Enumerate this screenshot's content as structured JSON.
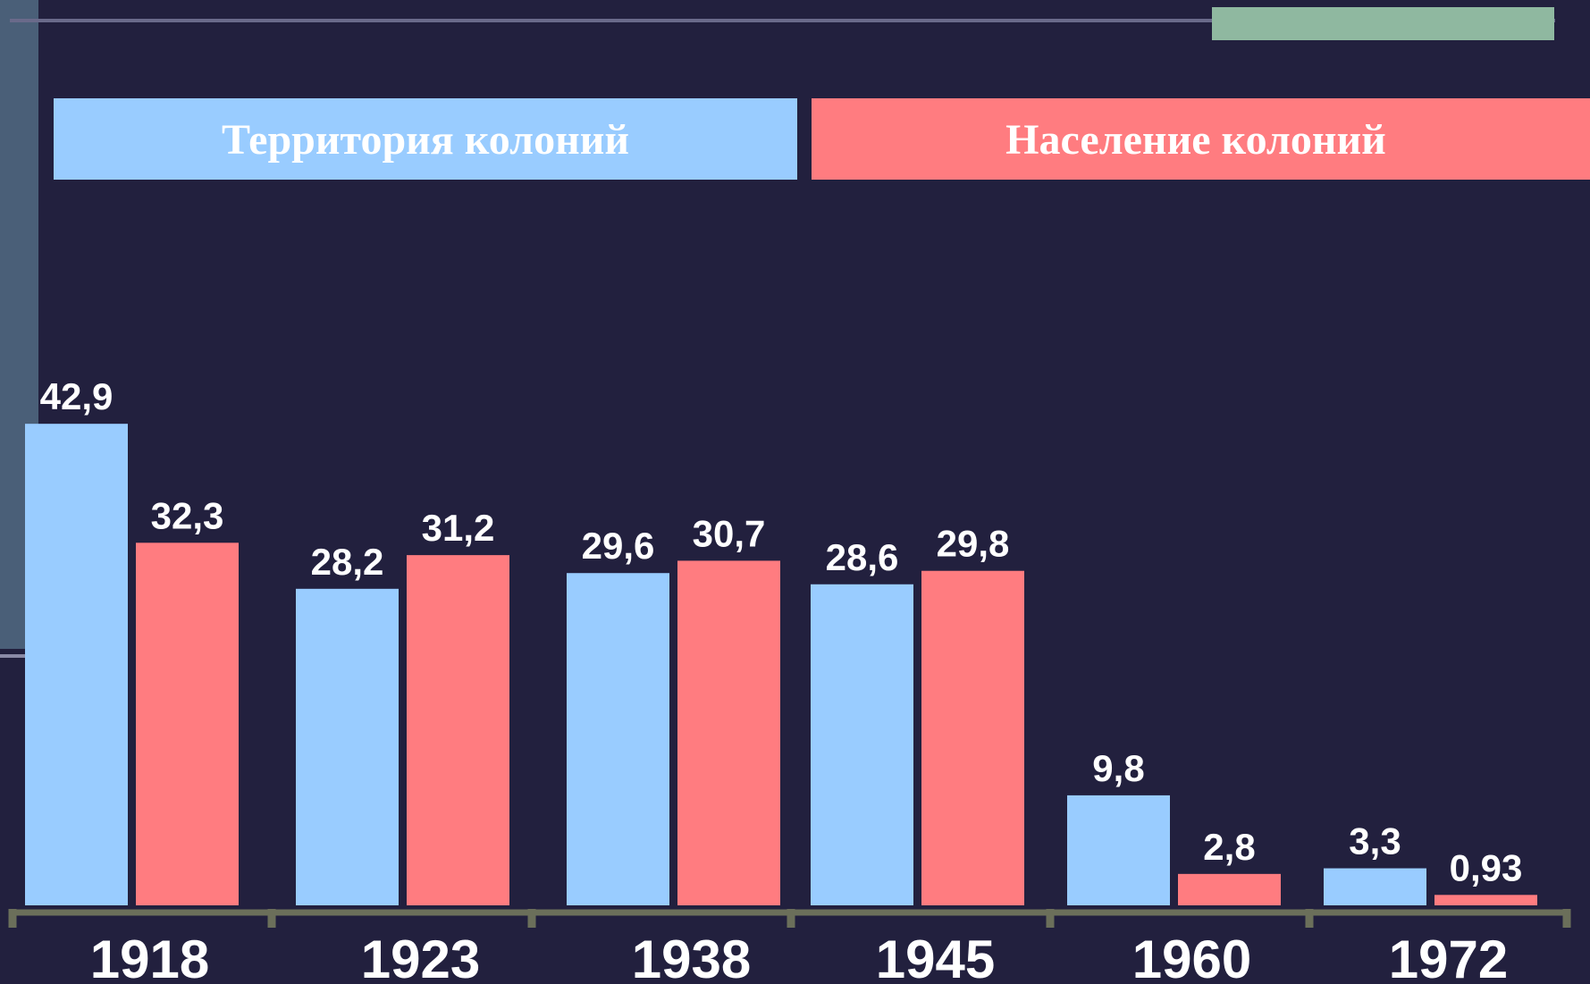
{
  "chart_data": {
    "type": "bar",
    "categories": [
      "1918",
      "1923",
      "1938",
      "1945",
      "1960",
      "1972"
    ],
    "series": [
      {
        "name": "Территория колоний",
        "color": "#99ccff",
        "values": [
          42.9,
          28.2,
          29.6,
          28.6,
          9.8,
          3.3
        ],
        "value_labels": [
          "42,9",
          "28,2",
          "29,6",
          "28,6",
          "9,8",
          "3,3"
        ]
      },
      {
        "name": "Население колоний",
        "color": "#ff7c80",
        "values": [
          32.3,
          31.2,
          30.7,
          29.8,
          2.8,
          0.93
        ],
        "value_labels": [
          "32,3",
          "31,2",
          "30,7",
          "29,8",
          "2,8",
          "0,93"
        ]
      }
    ]
  }
}
